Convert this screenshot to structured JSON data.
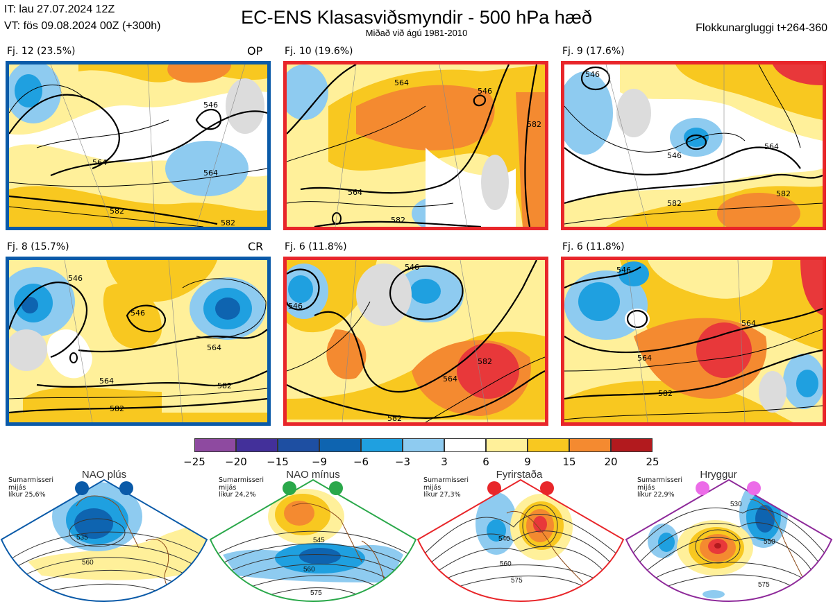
{
  "header": {
    "it": "IT: lau 27.07.2024 12Z",
    "vt": "VT: fös 09.08.2024 00Z  (+300h)",
    "title": "EC-ENS Klasasviðsmyndir - 500 hPa hæð",
    "subtitle": "Miðað við ágú 1981-2010",
    "window": "Flokkunargluggi t+264-360"
  },
  "panels": [
    {
      "label": "Fj. 12 (23.5%)",
      "tag": "OP",
      "border_color": "#0a5aa8",
      "contours": [
        "546",
        "564",
        "564",
        "582",
        "582"
      ]
    },
    {
      "label": "Fj. 10 (19.6%)",
      "tag": "",
      "border_color": "#e8262a",
      "contours": [
        "546",
        "564",
        "564",
        "582",
        "582"
      ]
    },
    {
      "label": "Fj. 9 (17.6%)",
      "tag": "",
      "border_color": "#e8262a",
      "contours": [
        "546",
        "546",
        "564",
        "582",
        "582"
      ]
    },
    {
      "label": "Fj. 8 (15.7%)",
      "tag": "CR",
      "border_color": "#0a5aa8",
      "contours": [
        "546",
        "546",
        "564",
        "564",
        "582",
        "582"
      ]
    },
    {
      "label": "Fj. 6 (11.8%)",
      "tag": "",
      "border_color": "#e8262a",
      "contours": [
        "546",
        "546",
        "564",
        "582",
        "582"
      ]
    },
    {
      "label": "Fj. 6 (11.8%)",
      "tag": "",
      "border_color": "#e8262a",
      "contours": [
        "546",
        "564",
        "564",
        "582"
      ]
    }
  ],
  "colorbar": {
    "ticks": [
      "−25",
      "−20",
      "−15",
      "−9",
      "−6",
      "−3",
      "3",
      "6",
      "9",
      "15",
      "20",
      "25"
    ],
    "colors": [
      "#8e4aa0",
      "#43309a",
      "#1e4fa2",
      "#0e64b0",
      "#1fa0e0",
      "#8ecbf0",
      "#ffffff",
      "#fff09a",
      "#f8c820",
      "#f48a30",
      "#e8383a",
      "#b21a1e"
    ]
  },
  "regimes": [
    {
      "name": "NAO plús",
      "season": "Sumarmisseri",
      "basis": "mijás",
      "likelihood": "líkur 25,6%",
      "color": "#0a5aa8",
      "contours": [
        "535",
        "560"
      ]
    },
    {
      "name": "NAO mínus",
      "season": "Sumarmisseri",
      "basis": "mijás",
      "likelihood": "líkur 24,2%",
      "color": "#2aa84a",
      "contours": [
        "545",
        "560",
        "575"
      ]
    },
    {
      "name": "Fyrirstaða",
      "season": "Sumarmisseri",
      "basis": "mijás",
      "likelihood": "líkur 27,3%",
      "color": "#e8262a",
      "contours": [
        "540",
        "560",
        "575"
      ]
    },
    {
      "name": "Hryggur",
      "season": "Sumarmisseri",
      "basis": "mijás",
      "likelihood": "líkur 22,9%",
      "color": "#8e2a9a",
      "contours": [
        "530",
        "550",
        "575"
      ]
    }
  ]
}
